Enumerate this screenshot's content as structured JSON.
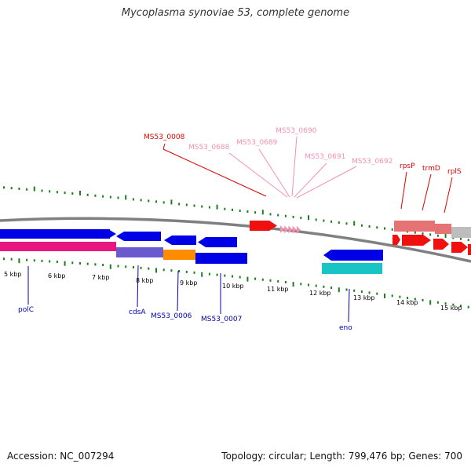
{
  "title": "Mycoplasma synoviae 53, complete genome",
  "footer": {
    "accession": "Accession: NC_007294",
    "summary": "Topology: circular; Length: 799,476 bp; Genes: 700"
  },
  "colors": {
    "backbone": "#808080",
    "tick": "#1e7d1e",
    "forward_label": "#dd0000",
    "forward_label_faded": "#f48fb1",
    "reverse_label": "#0000b4",
    "gene_blue": "#0000e6",
    "gene_red": "#f01010",
    "gene_pink": "#e8177f",
    "gene_purple": "#6a5acd",
    "gene_orange": "#ff8c00",
    "gene_cyan": "#18c4c4",
    "gene_salmon": "#e57373",
    "gene_gray": "#bdbdbd",
    "gene_faded_pink": "#f48fb1"
  },
  "scale": {
    "labels": [
      {
        "text": "5 kbp",
        "kbp": 5
      },
      {
        "text": "6 kbp",
        "kbp": 6
      },
      {
        "text": "7 kbp",
        "kbp": 7
      },
      {
        "text": "8 kbp",
        "kbp": 8
      },
      {
        "text": "9 kbp",
        "kbp": 9
      },
      {
        "text": "10 kbp",
        "kbp": 10
      },
      {
        "text": "11 kbp",
        "kbp": 11
      },
      {
        "text": "12 kbp",
        "kbp": 12
      },
      {
        "text": "13 kbp",
        "kbp": 13
      },
      {
        "text": "14 kbp",
        "kbp": 14
      },
      {
        "text": "15 kbp",
        "kbp": 15
      }
    ]
  },
  "genes": {
    "forward_labels": [
      {
        "name": "MS53_0008",
        "faded": false
      },
      {
        "name": "MS53_0688",
        "faded": true
      },
      {
        "name": "MS53_0689",
        "faded": true
      },
      {
        "name": "MS53_0690",
        "faded": true
      },
      {
        "name": "MS53_0691",
        "faded": true
      },
      {
        "name": "MS53_0692",
        "faded": true
      },
      {
        "name": "rpsP",
        "faded": false
      },
      {
        "name": "trmD",
        "faded": false
      },
      {
        "name": "rplS",
        "faded": false
      }
    ],
    "reverse_labels": [
      {
        "name": "polC"
      },
      {
        "name": "cdsA"
      },
      {
        "name": "MS53_0006"
      },
      {
        "name": "MS53_0007"
      },
      {
        "name": "eno"
      }
    ]
  }
}
